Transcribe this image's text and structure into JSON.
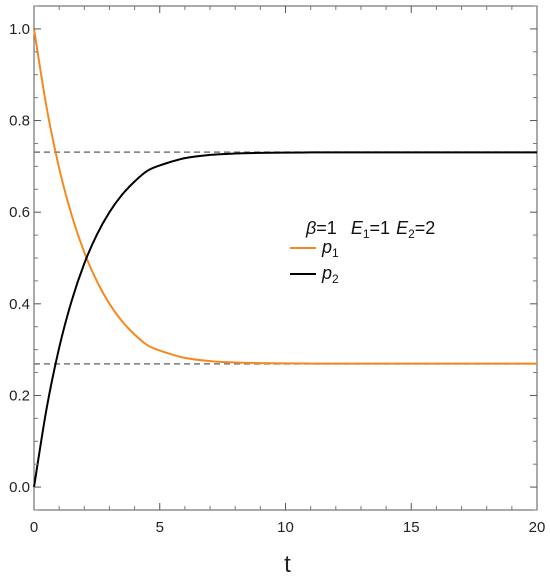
{
  "chart_data": {
    "type": "line",
    "xlabel": "t",
    "ylabel": "",
    "xlim": [
      0,
      20
    ],
    "ylim": [
      -0.05,
      1.05
    ],
    "x_ticks": [
      0,
      5,
      10,
      15,
      20
    ],
    "y_ticks": [
      0.0,
      0.2,
      0.4,
      0.6,
      0.8,
      1.0
    ],
    "x_tick_labels": [
      "0",
      "5",
      "10",
      "15",
      "20"
    ],
    "y_tick_labels": [
      "0.0",
      "0.2",
      "0.4",
      "0.6",
      "0.8",
      "1.0"
    ],
    "grid": false,
    "legend_position": "center-right",
    "legend_header": {
      "beta_symbol": "β",
      "beta_value": "=1",
      "e1_symbol": "E",
      "e1_sub": "1",
      "e1_value": "=1",
      "e2_symbol": "E",
      "e2_sub": "2",
      "e2_value": "=2"
    },
    "series": [
      {
        "name": "p1",
        "label_symbol": "p",
        "label_sub": "1",
        "color": "#f5891f",
        "x": [
          0,
          0.5,
          1,
          1.5,
          2,
          2.5,
          3,
          3.5,
          4,
          4.5,
          5,
          6,
          7,
          8,
          9,
          10,
          11,
          12,
          13,
          14,
          15,
          16,
          17,
          18,
          19,
          20
        ],
        "values": [
          1.0,
          0.829,
          0.696,
          0.593,
          0.512,
          0.449,
          0.4,
          0.362,
          0.333,
          0.31,
          0.298,
          0.282,
          0.275,
          0.2719,
          0.2705,
          0.2699,
          0.2696,
          0.2694,
          0.2694,
          0.2694,
          0.2694,
          0.2694,
          0.2694,
          0.2694,
          0.2694,
          0.2694
        ]
      },
      {
        "name": "p2",
        "label_symbol": "p",
        "label_sub": "2",
        "color": "#000000",
        "x": [
          0,
          0.5,
          1,
          1.5,
          2,
          2.5,
          3,
          3.5,
          4,
          4.5,
          5,
          6,
          7,
          8,
          9,
          10,
          11,
          12,
          13,
          14,
          15,
          16,
          17,
          18,
          19,
          20
        ],
        "values": [
          0.0,
          0.171,
          0.304,
          0.407,
          0.488,
          0.551,
          0.6,
          0.638,
          0.667,
          0.69,
          0.702,
          0.718,
          0.725,
          0.7281,
          0.7295,
          0.7301,
          0.7304,
          0.7306,
          0.7306,
          0.7306,
          0.7306,
          0.7306,
          0.7306,
          0.7306,
          0.7306,
          0.7306
        ]
      }
    ],
    "reference_lines": [
      {
        "name": "p2-equilibrium",
        "y": 0.7311,
        "color": "#777777",
        "style": "dashed"
      },
      {
        "name": "p1-equilibrium",
        "y": 0.2689,
        "color": "#777777",
        "style": "dashed"
      }
    ]
  }
}
